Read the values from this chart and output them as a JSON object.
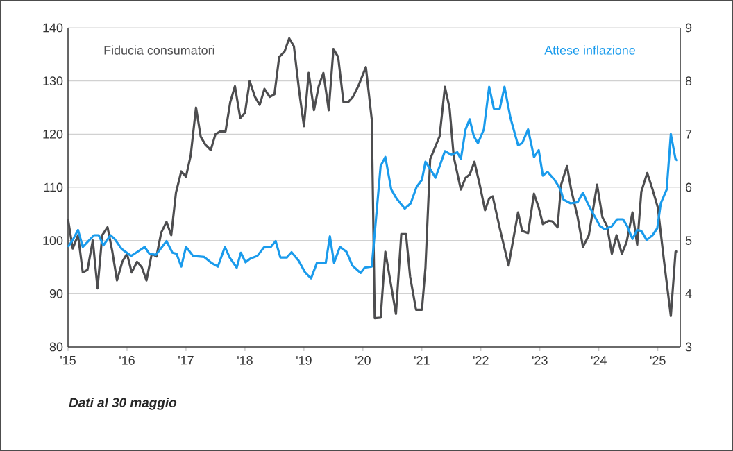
{
  "chart_data": {
    "type": "line",
    "xlim": [
      2015,
      2025.38
    ],
    "xticks": [
      {
        "value": 2015,
        "label": "'15"
      },
      {
        "value": 2016,
        "label": "'16"
      },
      {
        "value": 2017,
        "label": "'17"
      },
      {
        "value": 2018,
        "label": "'18"
      },
      {
        "value": 2019,
        "label": "'19"
      },
      {
        "value": 2020,
        "label": "'20"
      },
      {
        "value": 2021,
        "label": "'21"
      },
      {
        "value": 2022,
        "label": "'22"
      },
      {
        "value": 2023,
        "label": "'23"
      },
      {
        "value": 2024,
        "label": "'24"
      },
      {
        "value": 2025,
        "label": "'25"
      }
    ],
    "ylim": [
      80,
      140
    ],
    "yticks": [
      80,
      90,
      100,
      110,
      120,
      130,
      140
    ],
    "y2lim": [
      3,
      9
    ],
    "y2ticks": [
      3,
      4,
      5,
      6,
      7,
      8,
      9
    ],
    "grid": "y",
    "annotations": [
      "**Dati al 30 maggio**"
    ],
    "series": [
      {
        "name": "Fiducia consumatori",
        "color": "#4d4d4f",
        "x": [
          2015.0,
          2015.08,
          2015.17,
          2015.25,
          2015.33,
          2015.42,
          2015.5,
          2015.58,
          2015.67,
          2015.75,
          2015.83,
          2015.92,
          2016.0,
          2016.08,
          2016.17,
          2016.25,
          2016.33,
          2016.42,
          2016.5,
          2016.58,
          2016.67,
          2016.75,
          2016.83,
          2016.92,
          2017.0,
          2017.08,
          2017.17,
          2017.25,
          2017.33,
          2017.42,
          2017.5,
          2017.58,
          2017.67,
          2017.75,
          2017.83,
          2017.92,
          2018.0,
          2018.08,
          2018.17,
          2018.25,
          2018.33,
          2018.42,
          2018.5,
          2018.58,
          2018.67,
          2018.75,
          2018.83,
          2018.92,
          2019.0,
          2019.08,
          2019.17,
          2019.25,
          2019.33,
          2019.42,
          2019.5,
          2019.58,
          2019.67,
          2019.75,
          2019.83,
          2019.92,
          2020.05,
          2020.15,
          2020.2,
          2020.3,
          2020.38,
          2020.56,
          2020.65,
          2020.73,
          2020.8,
          2020.9,
          2021.0,
          2021.06,
          2021.14,
          2021.3,
          2021.39,
          2021.47,
          2021.54,
          2021.66,
          2021.74,
          2021.81,
          2021.89,
          2021.98,
          2022.07,
          2022.14,
          2022.2,
          2022.32,
          2022.47,
          2022.63,
          2022.7,
          2022.8,
          2022.9,
          2022.98,
          2023.05,
          2023.15,
          2023.21,
          2023.3,
          2023.36,
          2023.46,
          2023.53,
          2023.64,
          2023.73,
          2023.83,
          2023.97,
          2024.06,
          2024.14,
          2024.22,
          2024.3,
          2024.39,
          2024.47,
          2024.57,
          2024.65,
          2024.72,
          2024.82,
          2024.91,
          2025.0,
          2025.1,
          2025.22,
          2025.3,
          2025.34
        ],
        "values": [
          104,
          98.5,
          101,
          94,
          94.5,
          100,
          91,
          101,
          102.5,
          98,
          92.5,
          96,
          97.5,
          94,
          96,
          95,
          92.5,
          97.5,
          97,
          101.5,
          103.5,
          101,
          109,
          113,
          112,
          116,
          125,
          119.5,
          118,
          117,
          120,
          120.5,
          120.5,
          126,
          129,
          123,
          124,
          130,
          127,
          125.5,
          128.5,
          127,
          127.5,
          134.5,
          135.5,
          138,
          136.5,
          128,
          121.5,
          131.5,
          124.5,
          129,
          131.5,
          124.5,
          136,
          134.5,
          126,
          126,
          127,
          129,
          132.6,
          122.7,
          85.4,
          85.5,
          97.9,
          86.2,
          101.2,
          101.2,
          93.2,
          87,
          87,
          94.9,
          115.3,
          119.6,
          128.9,
          124.8,
          115.7,
          109.6,
          111.8,
          112.4,
          114.8,
          110.5,
          105.7,
          107.9,
          108.3,
          102.3,
          95.3,
          105.3,
          101.8,
          101.4,
          108.8,
          106.2,
          103.1,
          103.7,
          103.6,
          102.5,
          110.5,
          114,
          109.6,
          104.4,
          98.8,
          101,
          110.5,
          104.4,
          102.7,
          97.5,
          101,
          97.5,
          99.7,
          105.3,
          99.2,
          109.2,
          112.7,
          109.6,
          106.2,
          96.6,
          85.8,
          97.9,
          98
        ]
      },
      {
        "name": "Attese inflazione",
        "color": "#1a9bec",
        "axis": "y2",
        "x": [
          2015.0,
          2015.08,
          2015.17,
          2015.25,
          2015.44,
          2015.52,
          2015.6,
          2015.72,
          2015.79,
          2015.91,
          2016.07,
          2016.18,
          2016.3,
          2016.38,
          2016.49,
          2016.67,
          2016.77,
          2016.84,
          2016.92,
          2017.0,
          2017.12,
          2017.31,
          2017.43,
          2017.54,
          2017.66,
          2017.74,
          2017.86,
          2017.93,
          2018.01,
          2018.09,
          2018.21,
          2018.32,
          2018.44,
          2018.52,
          2018.6,
          2018.71,
          2018.79,
          2018.91,
          2019.02,
          2019.12,
          2019.22,
          2019.37,
          2019.44,
          2019.51,
          2019.61,
          2019.72,
          2019.82,
          2019.96,
          2020.03,
          2020.15,
          2020.3,
          2020.38,
          2020.48,
          2020.57,
          2020.71,
          2020.81,
          2020.91,
          2021.0,
          2021.06,
          2021.16,
          2021.23,
          2021.39,
          2021.5,
          2021.6,
          2021.66,
          2021.74,
          2021.81,
          2021.88,
          2021.95,
          2022.05,
          2022.14,
          2022.22,
          2022.32,
          2022.4,
          2022.5,
          2022.63,
          2022.7,
          2022.8,
          2022.9,
          2022.98,
          2023.05,
          2023.13,
          2023.25,
          2023.35,
          2023.4,
          2023.52,
          2023.64,
          2023.73,
          2023.81,
          2023.91,
          2024.02,
          2024.1,
          2024.22,
          2024.31,
          2024.41,
          2024.48,
          2024.57,
          2024.65,
          2024.72,
          2024.81,
          2024.91,
          2024.99,
          2025.05,
          2025.15,
          2025.22,
          2025.3,
          2025.34
        ],
        "values": [
          4.88,
          5.01,
          5.2,
          4.88,
          5.1,
          5.1,
          4.91,
          5.1,
          5.03,
          4.84,
          4.71,
          4.79,
          4.88,
          4.75,
          4.73,
          4.99,
          4.77,
          4.75,
          4.51,
          4.88,
          4.71,
          4.69,
          4.58,
          4.51,
          4.88,
          4.68,
          4.49,
          4.77,
          4.59,
          4.66,
          4.71,
          4.87,
          4.88,
          4.99,
          4.68,
          4.68,
          4.78,
          4.62,
          4.4,
          4.29,
          4.58,
          4.58,
          5.08,
          4.58,
          4.88,
          4.79,
          4.53,
          4.39,
          4.49,
          4.51,
          6.4,
          6.57,
          5.96,
          5.79,
          5.6,
          5.7,
          6.01,
          6.14,
          6.48,
          6.31,
          6.18,
          6.68,
          6.61,
          6.66,
          6.53,
          7.09,
          7.28,
          6.96,
          6.83,
          7.09,
          7.89,
          7.48,
          7.48,
          7.89,
          7.31,
          6.79,
          6.83,
          7.09,
          6.57,
          6.7,
          6.22,
          6.29,
          6.14,
          5.96,
          5.77,
          5.7,
          5.72,
          5.9,
          5.7,
          5.49,
          5.27,
          5.21,
          5.27,
          5.4,
          5.4,
          5.27,
          5.03,
          5.2,
          5.18,
          5.01,
          5.1,
          5.23,
          5.7,
          5.96,
          7.0,
          6.53,
          6.5
        ]
      }
    ]
  }
}
